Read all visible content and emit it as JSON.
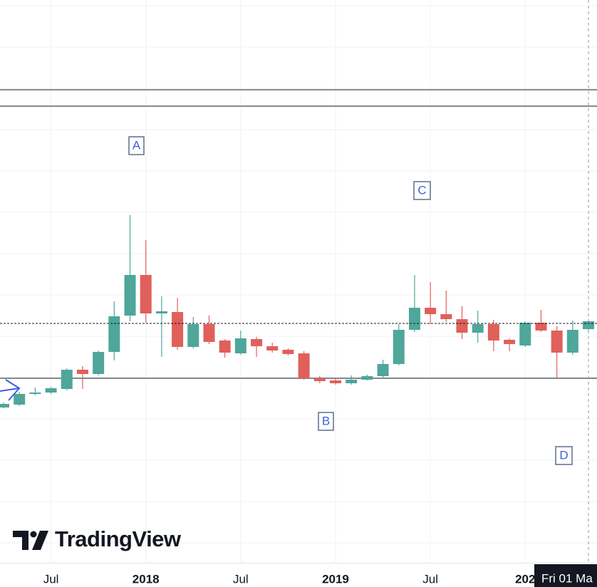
{
  "chart_data": {
    "type": "candlestick",
    "categories": [
      null,
      null,
      null,
      "Jul",
      null,
      null,
      null,
      null,
      null,
      "2018",
      null,
      null,
      null,
      null,
      null,
      "Jul",
      null,
      null,
      null,
      null,
      null,
      "2019",
      null,
      null,
      null,
      null,
      null,
      "Jul",
      null,
      null,
      null,
      null,
      null,
      "202",
      null,
      null,
      null,
      null
    ],
    "open": [
      21.8,
      22.2,
      23.7,
      23.9,
      24.4,
      27.1,
      26.5,
      29.6,
      34.7,
      40.4,
      35,
      35.2,
      30.3,
      33.5,
      31.2,
      29.4,
      31.4,
      30.4,
      29.9,
      29.4,
      25.9,
      25.6,
      25.2,
      25.7,
      26.2,
      27.9,
      32.7,
      35.8,
      34.9,
      34.2,
      32.3,
      33.5,
      31.3,
      30.5,
      33.7,
      32.6,
      29.5,
      32.8
    ],
    "high": [
      22.5,
      24,
      24.6,
      24.7,
      27.3,
      27.6,
      29.8,
      36.7,
      48.8,
      45.3,
      37.4,
      37.2,
      34.5,
      34.7,
      31.4,
      32.6,
      31.7,
      30.9,
      30.1,
      29.7,
      26.2,
      25.9,
      26.3,
      26.4,
      28.5,
      33.5,
      40.4,
      39.4,
      38.2,
      36,
      35.4,
      34.1,
      31.5,
      33.9,
      35.5,
      33.2,
      34,
      34.1
    ],
    "low": [
      21.7,
      22,
      23.5,
      23.7,
      24.2,
      24.4,
      26.3,
      28.4,
      33.9,
      33.7,
      28.9,
      29.9,
      30.1,
      30.7,
      28.8,
      29.2,
      28.9,
      29.5,
      29.1,
      25.7,
      25.2,
      25,
      25,
      25.6,
      26,
      27.7,
      32.4,
      33.5,
      33.8,
      31.4,
      30.9,
      29.7,
      29.7,
      30.3,
      32.4,
      25.9,
      29.2,
      32.6
    ],
    "close": [
      22.3,
      23.7,
      23.9,
      24.5,
      27.1,
      26.5,
      29.6,
      34.6,
      40.4,
      35,
      35.3,
      30.3,
      33.5,
      31,
      29.5,
      31.5,
      30.4,
      29.8,
      29.3,
      25.9,
      25.5,
      25.2,
      25.7,
      26.2,
      27.9,
      32.7,
      35.8,
      34.9,
      34.2,
      32.3,
      33.5,
      31.2,
      30.7,
      33.7,
      32.6,
      29.5,
      32.7,
      33.9
    ],
    "up_color": "#4fa69a",
    "down_color": "#e0605a",
    "ylim": [
      0,
      79
    ],
    "hlines": [
      66.4,
      64.1,
      25.9
    ],
    "last_price": 33.6,
    "annotations": [
      "A",
      "B",
      "C",
      "D"
    ],
    "crosshair_label": "Fri 01 Ma",
    "watermark": "TradingView"
  }
}
